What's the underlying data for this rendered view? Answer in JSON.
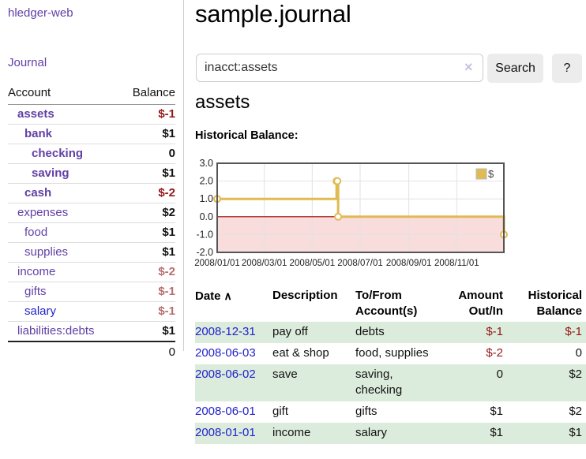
{
  "app": {
    "title": "hledger-web"
  },
  "colors": {
    "purple_link": "#6140a5",
    "blue_link": "#2222cc",
    "negative": "#941616",
    "negative_muted": "#b76e6e",
    "row_stripe_green": "#dcecdc",
    "chart_gold": "#e0ba52"
  },
  "sidebar": {
    "journal_link": "Journal",
    "table": {
      "account_header": "Account",
      "balance_header": "Balance",
      "rows": [
        {
          "name": "assets",
          "balance": "$-1",
          "level": 1,
          "bold": true,
          "blue": false
        },
        {
          "name": "bank",
          "balance": "$1",
          "level": 2,
          "bold": true,
          "blue": false
        },
        {
          "name": "checking",
          "balance": "0",
          "level": 3,
          "bold": true,
          "blue": false
        },
        {
          "name": "saving",
          "balance": "$1",
          "level": 3,
          "bold": true,
          "blue": false
        },
        {
          "name": "cash",
          "balance": "$-2",
          "level": 2,
          "bold": true,
          "blue": false
        },
        {
          "name": "expenses",
          "balance": "$2",
          "level": 1,
          "bold": false,
          "blue": false
        },
        {
          "name": "food",
          "balance": "$1",
          "level": 2,
          "bold": false,
          "blue": false
        },
        {
          "name": "supplies",
          "balance": "$1",
          "level": 2,
          "bold": false,
          "blue": false
        },
        {
          "name": "income",
          "balance": "$-2",
          "level": 1,
          "bold": false,
          "blue": false
        },
        {
          "name": "gifts",
          "balance": "$-1",
          "level": 2,
          "bold": false,
          "blue": false
        },
        {
          "name": "salary",
          "balance": "$-1",
          "level": 2,
          "bold": false,
          "blue": true
        },
        {
          "name": "liabilities:debts",
          "balance": "$1",
          "level": 1,
          "bold": false,
          "blue": false
        }
      ],
      "total": "0"
    }
  },
  "main": {
    "title": "sample.journal",
    "search": {
      "query": "inacct:assets",
      "clear_icon": "×",
      "button_label": "Search",
      "help_label": "?"
    },
    "account_heading": "assets",
    "chart_label": "Historical Balance:"
  },
  "chart_data": {
    "type": "line",
    "step": true,
    "title": "Historical Balance",
    "series": [
      {
        "name": "$",
        "x": [
          "2008-01-01",
          "2008-06-01",
          "2008-06-02",
          "2008-06-03",
          "2008-12-31"
        ],
        "y": [
          1,
          2,
          2,
          0,
          -1
        ]
      }
    ],
    "xlim": [
      "2008-01-01",
      "2008-12-31"
    ],
    "ylim": [
      -2,
      3
    ],
    "yticks": [
      3,
      2,
      1,
      0,
      -1,
      -2
    ],
    "ytick_labels": [
      "3.0",
      "2.0",
      "1.0",
      "0.0",
      "-1.0",
      "-2.0"
    ],
    "xticks": [
      "2008-01-01",
      "2008-03-01",
      "2008-05-01",
      "2008-07-01",
      "2008-09-01",
      "2008-11-01"
    ],
    "xtick_labels": [
      "2008/01/01",
      "2008/03/01",
      "2008/05/01",
      "2008/07/01",
      "2008/09/01",
      "2008/11/01"
    ],
    "grid": true,
    "legend": {
      "label": "$",
      "position": "top-right"
    },
    "colors": {
      "line": "#e0ba52",
      "marker_fill": "#ffffff",
      "negative_region": "#f9dcdc",
      "zero_line": "#9b0000",
      "grid": "#e2e2e2",
      "border": "#555555",
      "legend_border": "#bbbbbb"
    }
  },
  "register": {
    "sort_icon": "∧",
    "columns": [
      {
        "label": "Date",
        "align": "left"
      },
      {
        "label": "Description",
        "align": "left"
      },
      {
        "label": "To/From Account(s)",
        "align": "left"
      },
      {
        "label": "Amount Out/In",
        "align": "right"
      },
      {
        "label": "Historical Balance",
        "align": "right"
      }
    ],
    "rows": [
      {
        "date": "2008-12-31",
        "description": "pay off",
        "accounts": "debts",
        "amount": "$-1",
        "balance": "$-1",
        "stripe": true
      },
      {
        "date": "2008-06-03",
        "description": "eat & shop",
        "accounts": "food, supplies",
        "amount": "$-2",
        "balance": "0",
        "stripe": false
      },
      {
        "date": "2008-06-02",
        "description": "save",
        "accounts": "saving, checking",
        "amount": "0",
        "balance": "$2",
        "stripe": true
      },
      {
        "date": "2008-06-01",
        "description": "gift",
        "accounts": "gifts",
        "amount": "$1",
        "balance": "$2",
        "stripe": false
      },
      {
        "date": "2008-01-01",
        "description": "income",
        "accounts": "salary",
        "amount": "$1",
        "balance": "$1",
        "stripe": true
      }
    ]
  }
}
